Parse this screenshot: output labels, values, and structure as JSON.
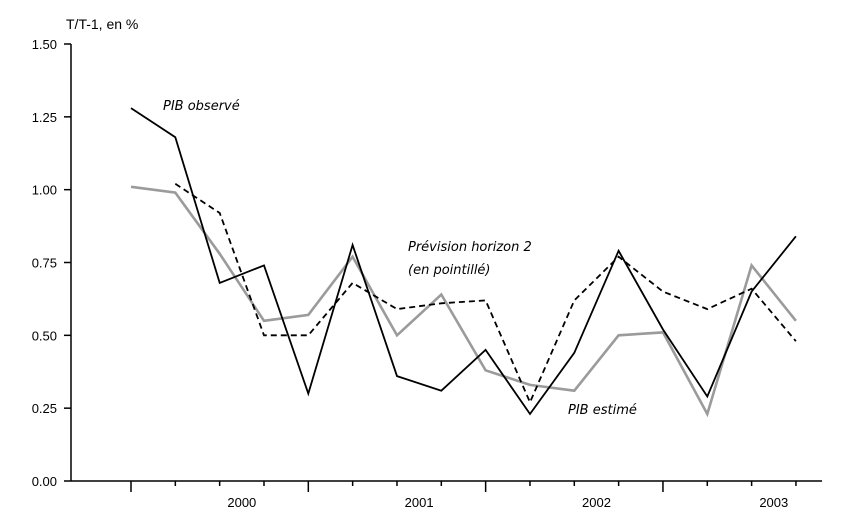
{
  "chart_data": {
    "type": "line",
    "ylabel": "T/T-1, en %",
    "ylim": [
      0,
      1.5
    ],
    "yticks": [
      "0.00",
      "0.25",
      "0.50",
      "0.75",
      "1.00",
      "1.25",
      "1.50"
    ],
    "x_periods": [
      "1999T4",
      "2000T1",
      "2000T2",
      "2000T3",
      "2000T4",
      "2001T1",
      "2001T2",
      "2001T3",
      "2001T4",
      "2002T1",
      "2002T2",
      "2002T3",
      "2002T4",
      "2003T1",
      "2003T2",
      "2003T3"
    ],
    "year_labels": [
      "2000",
      "2001",
      "2002",
      "2003"
    ],
    "grid": false,
    "series": [
      {
        "name": "PIB observé",
        "color": "#000000",
        "style": "solid",
        "x": [
          "1999T4",
          "2000T1",
          "2000T2",
          "2000T3",
          "2000T4",
          "2001T1",
          "2001T2",
          "2001T3",
          "2001T4",
          "2002T1",
          "2002T2",
          "2002T3",
          "2002T4",
          "2003T1",
          "2003T2",
          "2003T3"
        ],
        "values": [
          1.28,
          1.18,
          0.68,
          0.74,
          0.3,
          0.81,
          0.36,
          0.31,
          0.45,
          0.23,
          0.44,
          0.79,
          0.52,
          0.29,
          0.65,
          0.84
        ]
      },
      {
        "name": "Prévision horizon 2",
        "color": "#000000",
        "style": "dashed",
        "x": [
          "2000T1",
          "2000T2",
          "2000T3",
          "2000T4",
          "2001T1",
          "2001T2",
          "2001T3",
          "2001T4",
          "2002T1",
          "2002T2",
          "2002T3",
          "2002T4",
          "2003T1",
          "2003T2",
          "2003T3"
        ],
        "values": [
          1.02,
          0.92,
          0.5,
          0.5,
          0.68,
          0.59,
          0.61,
          0.62,
          0.27,
          0.62,
          0.77,
          0.65,
          0.59,
          0.66,
          0.48
        ]
      },
      {
        "name": "PIB estimé",
        "color": "#9b9b9b",
        "style": "solid",
        "x": [
          "1999T4",
          "2000T1",
          "2000T2",
          "2000T3",
          "2000T4",
          "2001T1",
          "2001T2",
          "2001T3",
          "2001T4",
          "2002T1",
          "2002T2",
          "2002T3",
          "2002T4",
          "2003T1",
          "2003T2",
          "2003T3"
        ],
        "values": [
          1.01,
          0.99,
          0.78,
          0.55,
          0.57,
          0.77,
          0.5,
          0.64,
          0.38,
          0.33,
          0.31,
          0.5,
          0.51,
          0.23,
          0.74,
          0.55
        ]
      }
    ],
    "annotations": [
      {
        "text": "PIB observé",
        "series": "PIB observé"
      },
      {
        "text": "Prévision horizon 2",
        "series": "Prévision horizon 2"
      },
      {
        "text": "(en pointillé)",
        "series": "Prévision horizon 2"
      },
      {
        "text": "PIB estimé",
        "series": "PIB estimé"
      }
    ]
  }
}
